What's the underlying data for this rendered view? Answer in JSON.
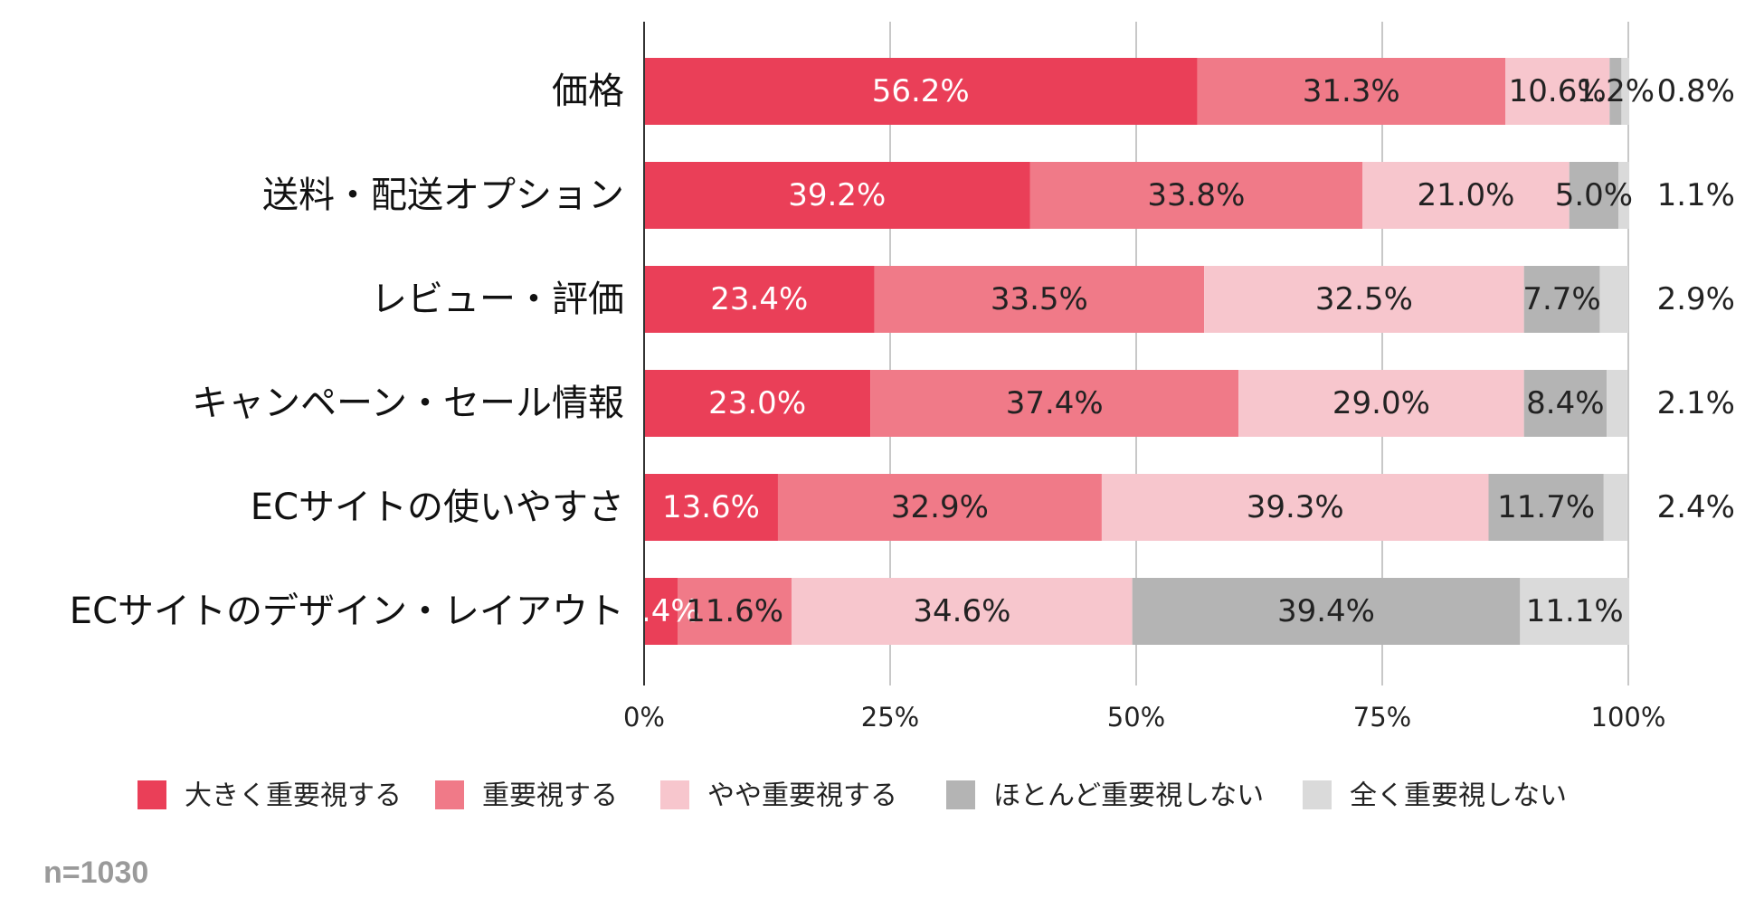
{
  "sample_note": "n=1030",
  "chart_data": {
    "type": "bar",
    "orientation": "horizontal",
    "stacked": true,
    "categories": [
      "価格",
      "送料・配送オプション",
      "レビュー・評価",
      "キャンペーン・セール情報",
      "ECサイトの使いやすさ",
      "ECサイトのデザイン・レイアウト"
    ],
    "series": [
      {
        "name": "大きく重要視する",
        "color": "#ea3f58",
        "values": [
          56.2,
          39.2,
          23.4,
          23.0,
          13.6,
          3.4
        ]
      },
      {
        "name": "重要視する",
        "color": "#f07a88",
        "values": [
          31.3,
          33.8,
          33.5,
          37.4,
          32.9,
          11.6
        ]
      },
      {
        "name": "やや重要視する",
        "color": "#f7c6cd",
        "values": [
          10.6,
          21.0,
          32.5,
          29.0,
          39.3,
          34.6
        ]
      },
      {
        "name": "ほとんど重要視しない",
        "color": "#b4b4b4",
        "values": [
          1.2,
          5.0,
          7.7,
          8.4,
          11.7,
          39.4
        ]
      },
      {
        "name": "全く重要視しない",
        "color": "#dadada",
        "values": [
          0.8,
          1.1,
          2.9,
          2.1,
          2.4,
          11.1
        ]
      }
    ],
    "value_labels": [
      [
        "56.2%",
        "31.3%",
        "10.6%",
        "1.2%",
        "0.8%"
      ],
      [
        "39.2%",
        "33.8%",
        "21.0%",
        "5.0%",
        "1.1%"
      ],
      [
        "23.4%",
        "33.5%",
        "32.5%",
        "7.7%",
        "2.9%"
      ],
      [
        "23.0%",
        "37.4%",
        "29.0%",
        "8.4%",
        "2.1%"
      ],
      [
        "13.6%",
        "32.9%",
        "39.3%",
        "11.7%",
        "2.4%"
      ],
      [
        "3.4%",
        "11.6%",
        "34.6%",
        "39.4%",
        "11.1%"
      ]
    ],
    "xlim": [
      0,
      100
    ],
    "x_ticks": [
      0,
      25,
      50,
      75,
      100
    ],
    "x_tick_labels": [
      "0%",
      "25%",
      "50%",
      "75%",
      "100%"
    ],
    "grid": true,
    "legend_position": "bottom",
    "label_colors": {
      "dark_segment": "#ffffff",
      "light_segment": "#222222"
    }
  }
}
